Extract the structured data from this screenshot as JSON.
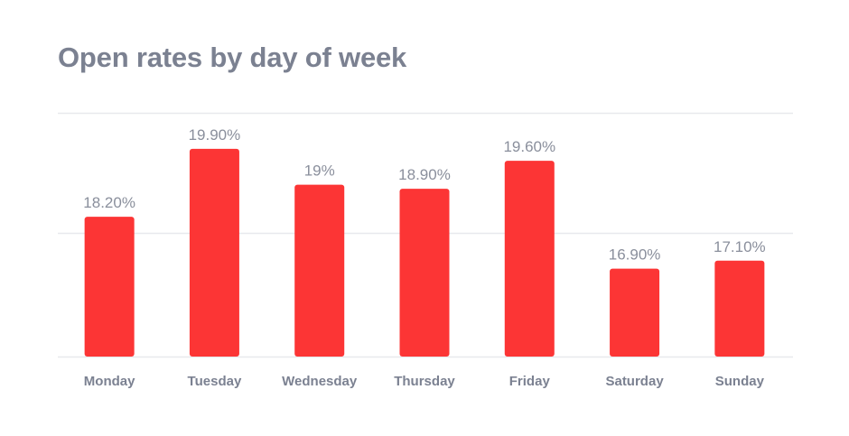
{
  "chart_data": {
    "type": "bar",
    "title": "Open rates by day of week",
    "xlabel": "",
    "ylabel": "",
    "categories": [
      "Monday",
      "Tuesday",
      "Wednesday",
      "Thursday",
      "Friday",
      "Saturday",
      "Sunday"
    ],
    "values": [
      18.2,
      19.9,
      19.0,
      18.9,
      19.6,
      16.9,
      17.1
    ],
    "value_labels": [
      "18.20%",
      "19.90%",
      "19%",
      "18.90%",
      "19.60%",
      "16.90%",
      "17.10%"
    ],
    "ylim": [
      14.7,
      20.8
    ],
    "gridlines": [
      14.7,
      17.8,
      20.8
    ],
    "grid": true,
    "legend": "none",
    "bar_color": "#fc3535",
    "grid_color": "#e8e9ed",
    "text_color": "#7b8191"
  }
}
